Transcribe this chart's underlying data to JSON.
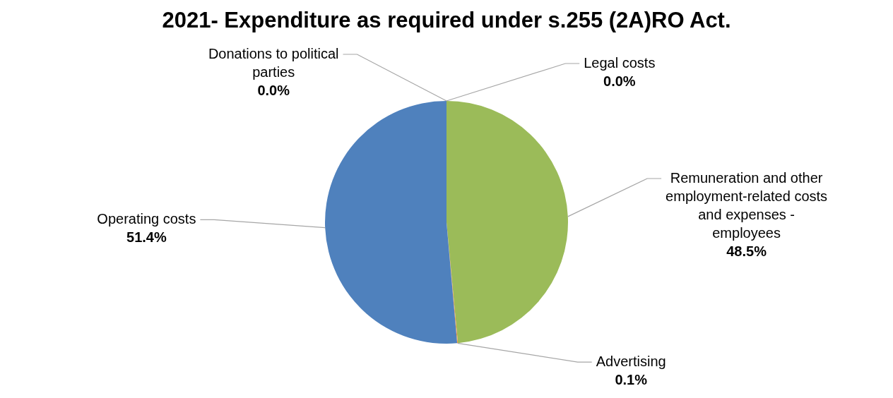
{
  "chart_data": {
    "type": "pie",
    "title": "2021- Expenditure as required under s.255 (2A)RO Act.",
    "categories": [
      "Legal costs",
      "Remuneration and other employment-related costs and expenses - employees",
      "Advertising",
      "Operating costs",
      "Donations to political parties"
    ],
    "values": [
      0,
      48.5,
      0.1,
      51.4,
      0
    ],
    "value_labels": [
      "0.0%",
      "48.5%",
      "0.1%",
      "51.4%",
      "0.0%"
    ],
    "colors": [
      "#c0504d",
      "#9bbb59",
      "#f79646",
      "#4f81bd",
      "#8064a2"
    ],
    "legend": false
  }
}
